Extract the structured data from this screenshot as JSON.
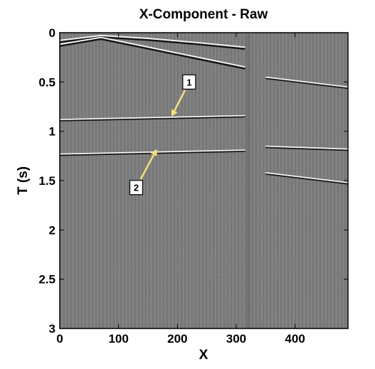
{
  "chart_data": {
    "type": "heatmap",
    "title": "X-Component - Raw",
    "xlabel": "X",
    "ylabel": "T (s)",
    "xlim": [
      0,
      490
    ],
    "ylim": [
      3,
      0
    ],
    "x_ticks": [
      0,
      100,
      200,
      300,
      400
    ],
    "x_tick_labels": [
      "0",
      "100",
      "200",
      "300",
      "400"
    ],
    "y_ticks": [
      0,
      0.5,
      1,
      1.5,
      2,
      2.5,
      3
    ],
    "y_tick_labels": [
      "0",
      "0.5",
      "1",
      "1.5",
      "2",
      "2.5",
      "3"
    ],
    "grid": false,
    "colormap": "gray",
    "background_color": "#7d7d7d",
    "callout_color": "#f2e27a",
    "events": [
      {
        "x": [
          0,
          70,
          150,
          230,
          315
        ],
        "t": [
          0.08,
          0.03,
          0.06,
          0.1,
          0.15
        ]
      },
      {
        "x": [
          0,
          70,
          315
        ],
        "t": [
          0.12,
          0.05,
          0.35
        ]
      },
      {
        "x": [
          0,
          315
        ],
        "t": [
          0.88,
          0.84
        ]
      },
      {
        "x": [
          0,
          315
        ],
        "t": [
          1.23,
          1.19
        ]
      },
      {
        "x": [
          350,
          490
        ],
        "t": [
          0.45,
          0.55
        ]
      },
      {
        "x": [
          350,
          490
        ],
        "t": [
          1.15,
          1.18
        ]
      },
      {
        "x": [
          350,
          490
        ],
        "t": [
          1.42,
          1.52
        ]
      }
    ],
    "annotations": [
      {
        "label": "1",
        "text_x": 220,
        "text_t": 0.5,
        "arrow_to_x": 190,
        "arrow_to_t": 0.85
      },
      {
        "label": "2",
        "text_x": 130,
        "text_t": 1.57,
        "arrow_to_x": 165,
        "arrow_to_t": 1.18
      }
    ]
  }
}
